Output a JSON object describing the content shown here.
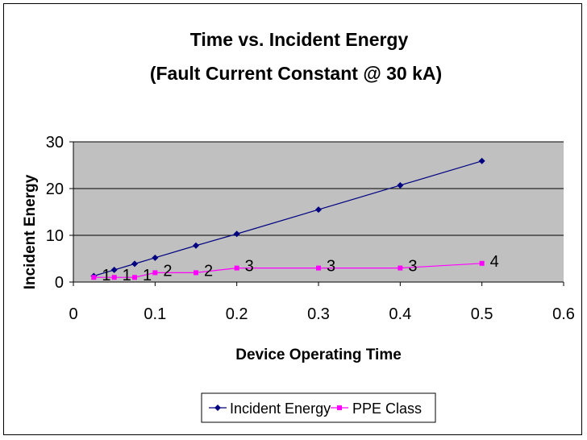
{
  "chart_data": {
    "type": "line",
    "title": "Time vs. Incident Energy",
    "subtitle": "(Fault Current Constant @ 30 kA)",
    "xlabel": "Device Operating Time",
    "ylabel": "Incident Energy",
    "xlim": [
      0,
      0.6
    ],
    "ylim": [
      0,
      30
    ],
    "x_ticks": [
      "0",
      "0.1",
      "0.2",
      "0.3",
      "0.4",
      "0.5",
      "0.6"
    ],
    "y_ticks": [
      "0",
      "10",
      "20",
      "30"
    ],
    "grid": "horizontal",
    "plot_background": "#c0c0c0",
    "legend_position": "bottom",
    "series": [
      {
        "name": "Incident Energy",
        "color": "#000080",
        "marker": "diamond",
        "x": [
          0.025,
          0.05,
          0.075,
          0.1,
          0.15,
          0.2,
          0.3,
          0.4,
          0.5
        ],
        "values": [
          1.3,
          2.6,
          3.9,
          5.2,
          7.8,
          10.3,
          15.5,
          20.7,
          25.9
        ]
      },
      {
        "name": "PPE Class",
        "color": "#ff00ff",
        "marker": "square",
        "x": [
          0.025,
          0.05,
          0.075,
          0.1,
          0.15,
          0.2,
          0.3,
          0.4,
          0.5
        ],
        "values": [
          1,
          1,
          1,
          2,
          2,
          3,
          3,
          3,
          4
        ],
        "data_labels": [
          "1",
          "1",
          "1",
          "2",
          "2",
          "3",
          "3",
          "3",
          "4"
        ]
      }
    ]
  }
}
